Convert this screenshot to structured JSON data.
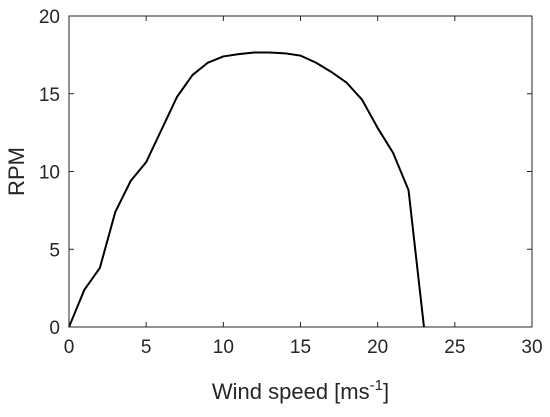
{
  "chart_data": {
    "type": "line",
    "title": "",
    "xlabel": "Wind speed [ms",
    "xlabel_sup": "-1",
    "xlabel_suffix": "]",
    "ylabel": "RPM",
    "xlim": [
      0,
      30
    ],
    "ylim": [
      0,
      20
    ],
    "xticks": [
      0,
      5,
      10,
      15,
      20,
      25,
      30
    ],
    "yticks": [
      0,
      5,
      10,
      15,
      20
    ],
    "grid": false,
    "line_color": "#000000",
    "axis_color": "#262626",
    "series": [
      {
        "x": [
          0,
          1,
          2,
          3,
          4,
          5,
          6,
          7,
          8,
          9,
          10,
          11,
          12,
          13,
          14,
          15,
          16,
          17,
          18,
          19,
          20,
          21,
          22,
          23
        ],
        "values": [
          0,
          2.4,
          3.8,
          7.4,
          9.4,
          10.6,
          12.7,
          14.8,
          16.2,
          17.0,
          17.4,
          17.55,
          17.65,
          17.65,
          17.6,
          17.45,
          17.0,
          16.4,
          15.7,
          14.6,
          12.8,
          11.2,
          8.8,
          0
        ]
      }
    ]
  }
}
